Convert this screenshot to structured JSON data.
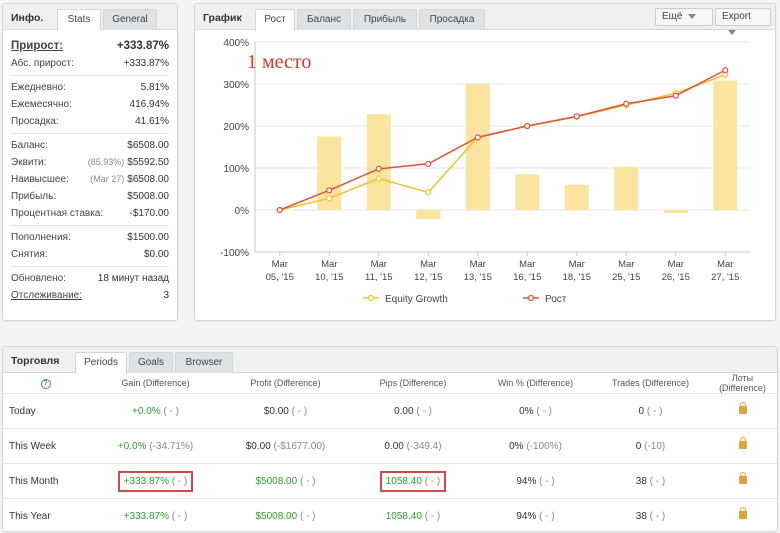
{
  "info": {
    "title": "Инфо.",
    "tabs": [
      "Stats",
      "General"
    ],
    "growth": {
      "label": "Прирост:",
      "value": "+333.87%"
    },
    "abs_growth": {
      "label": "Абс. прирост:",
      "value": "+333.87%"
    },
    "daily": {
      "label": "Ежедневно:",
      "value": "5.81%"
    },
    "monthly": {
      "label": "Ежемесячно:",
      "value": "416.94%"
    },
    "drawdown": {
      "label": "Просадка:",
      "value": "41.61%"
    },
    "balance": {
      "label": "Баланс:",
      "value": "$6508.00"
    },
    "equity": {
      "label": "Эквити:",
      "note": "(85.93%)",
      "value": "$5592.50"
    },
    "highest": {
      "label": "Наивысшее:",
      "note": "(Mar 27)",
      "value": "$6508.00"
    },
    "profit": {
      "label": "Прибыль:",
      "value": "$5008.00"
    },
    "interest": {
      "label": "Процентная ставка:",
      "value": "-$170.00"
    },
    "deposits": {
      "label": "Пополнения:",
      "value": "$1500.00"
    },
    "withdrawals": {
      "label": "Снятия:",
      "value": "$0.00"
    },
    "updated": {
      "label": "Обновлено:",
      "value": "18 минут назад"
    },
    "tracking": {
      "label": "Отслеживание:",
      "value": "3"
    }
  },
  "chart_panel": {
    "title": "График",
    "tabs": [
      "Рост",
      "Баланс",
      "Прибыль",
      "Просадка"
    ],
    "more_button": "Ещё",
    "export_button": "Export",
    "annotation": "1 место"
  },
  "chart_data": {
    "type": "bar",
    "categories": [
      [
        "Mar",
        "05, '15"
      ],
      [
        "Mar",
        "10, '15"
      ],
      [
        "Mar",
        "11, '15"
      ],
      [
        "Mar",
        "12, '15"
      ],
      [
        "Mar",
        "13, '15"
      ],
      [
        "Mar",
        "16, '15"
      ],
      [
        "Mar",
        "18, '15"
      ],
      [
        "Mar",
        "25, '15"
      ],
      [
        "Mar",
        "26, '15"
      ],
      [
        "Mar",
        "27, '15"
      ]
    ],
    "yticks": [
      "400%",
      "300%",
      "200%",
      "100%",
      "0%",
      "-100%"
    ],
    "ylim": [
      -100,
      400
    ],
    "bars": [
      0,
      175,
      228,
      -22,
      300,
      85,
      60,
      103,
      -7,
      308
    ],
    "series": [
      {
        "name": "Equity Growth",
        "color": "#f2c12e",
        "values": [
          0,
          28,
          75,
          42,
          173,
          200,
          222,
          250,
          278,
          322
        ]
      },
      {
        "name": "Рост",
        "color": "#e0533a",
        "values": [
          0,
          47,
          98,
          110,
          173,
          200,
          223,
          253,
          272,
          333
        ]
      }
    ],
    "bar_color": "#fbe3a0"
  },
  "trade": {
    "title": "Торговля",
    "tabs": [
      "Periods",
      "Goals",
      "Browser"
    ],
    "help": "?",
    "headers": [
      "Gain (Difference)",
      "Profit (Difference)",
      "Pips (Difference)",
      "Win % (Difference)",
      "Trades (Difference)",
      "Лоты (Difference)"
    ],
    "rows": [
      {
        "period": "Today",
        "gain": "+0.0%",
        "gain_diff": "( - )",
        "profit": "$0.00",
        "profit_diff": "( - )",
        "pips": "0.00",
        "pips_diff": "( - )",
        "win": "0%",
        "win_diff": "( - )",
        "trades": "0",
        "trades_diff": "( - )"
      },
      {
        "period": "This Week",
        "gain": "+0.0%",
        "gain_diff": "(-34.71%)",
        "profit": "$0.00",
        "profit_diff": "(-$1677.00)",
        "pips": "0.00",
        "pips_diff": "(-349.4)",
        "win": "0%",
        "win_diff": "(-100%)",
        "trades": "0",
        "trades_diff": "(-10)"
      },
      {
        "period": "This Month",
        "gain": "+333.87%",
        "gain_diff": "( - )",
        "profit": "$5008.00",
        "profit_diff": "( - )",
        "pips": "1058.40",
        "pips_diff": "( - )",
        "win": "94%",
        "win_diff": "( - )",
        "trades": "38",
        "trades_diff": "( - )"
      },
      {
        "period": "This Year",
        "gain": "+333.87%",
        "gain_diff": "( - )",
        "profit": "$5008.00",
        "profit_diff": "( - )",
        "pips": "1058.40",
        "pips_diff": "( - )",
        "win": "94%",
        "win_diff": "( - )",
        "trades": "38",
        "trades_diff": "( - )"
      }
    ]
  }
}
